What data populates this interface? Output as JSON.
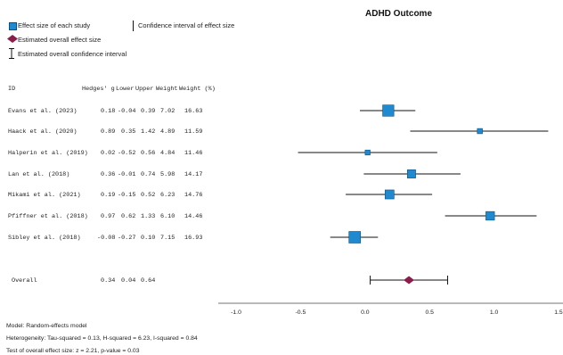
{
  "chart_data": {
    "type": "forest",
    "title": "ADHD Outcome",
    "legend": {
      "study_marker": "Effect size of each study",
      "ci_line": "Confidence interval of effect size",
      "overall_marker": "Estimated overall effect size",
      "overall_ci": "Estimated overall confidence interval"
    },
    "columns": [
      "ID",
      "Hedges' g",
      "Lower",
      "Upper",
      "Weight",
      "Weight (%)"
    ],
    "studies": [
      {
        "id": "Evans et al. (2023)",
        "g": "0.18",
        "lower": "-0.04",
        "upper": "0.39",
        "weight": "7.02",
        "weight_pct": "16.63",
        "g_val": 0.18,
        "lo_val": -0.04,
        "hi_val": 0.39,
        "w_val": 16.63
      },
      {
        "id": "Haack et al. (2020)",
        "g": "0.89",
        "lower": "0.35",
        "upper": "1.42",
        "weight": "4.89",
        "weight_pct": "11.59",
        "g_val": 0.89,
        "lo_val": 0.35,
        "hi_val": 1.42,
        "w_val": 11.59
      },
      {
        "id": "Halperin et al. (2019)",
        "g": "0.02",
        "lower": "-0.52",
        "upper": "0.56",
        "weight": "4.84",
        "weight_pct": "11.46",
        "g_val": 0.02,
        "lo_val": -0.52,
        "hi_val": 0.56,
        "w_val": 11.46
      },
      {
        "id": "Lan et al. (2018)",
        "g": "0.36",
        "lower": "-0.01",
        "upper": "0.74",
        "weight": "5.98",
        "weight_pct": "14.17",
        "g_val": 0.36,
        "lo_val": -0.01,
        "hi_val": 0.74,
        "w_val": 14.17
      },
      {
        "id": "Mikami et al. (2021)",
        "g": "0.19",
        "lower": "-0.15",
        "upper": "0.52",
        "weight": "6.23",
        "weight_pct": "14.76",
        "g_val": 0.19,
        "lo_val": -0.15,
        "hi_val": 0.52,
        "w_val": 14.76
      },
      {
        "id": "Pfiffner et al. (2018)",
        "g": "0.97",
        "lower": "0.62",
        "upper": "1.33",
        "weight": "6.10",
        "weight_pct": "14.46",
        "g_val": 0.97,
        "lo_val": 0.62,
        "hi_val": 1.33,
        "w_val": 14.46
      },
      {
        "id": "Sibley et al. (2018)",
        "g": "-0.08",
        "lower": "-0.27",
        "upper": "0.10",
        "weight": "7.15",
        "weight_pct": "16.93",
        "g_val": -0.08,
        "lo_val": -0.27,
        "hi_val": 0.1,
        "w_val": 16.93
      }
    ],
    "overall": {
      "id": "Overall",
      "g": "0.34",
      "lower": "0.04",
      "upper": "0.64",
      "g_val": 0.34,
      "lo_val": 0.04,
      "hi_val": 0.64
    },
    "xlim": [
      -1.0,
      1.5
    ],
    "xticks": [
      "-1.0",
      "-0.5",
      "0.0",
      "0.5",
      "1.0",
      "1.5"
    ],
    "xtick_vals": [
      -1.0,
      -0.5,
      0.0,
      0.5,
      1.0,
      1.5
    ],
    "colors": {
      "study": "#1f8ad0",
      "overall": "#8b1d4a",
      "line": "#111111"
    }
  },
  "notes": {
    "model": "Model: Random-effects model",
    "heterogeneity": "Heterogeneity: Tau-squared = 0.13, H-squared = 6.23, I-squared = 0.84",
    "test": "Test of overall effect size: z = 2.21, p-value = 0.03"
  }
}
